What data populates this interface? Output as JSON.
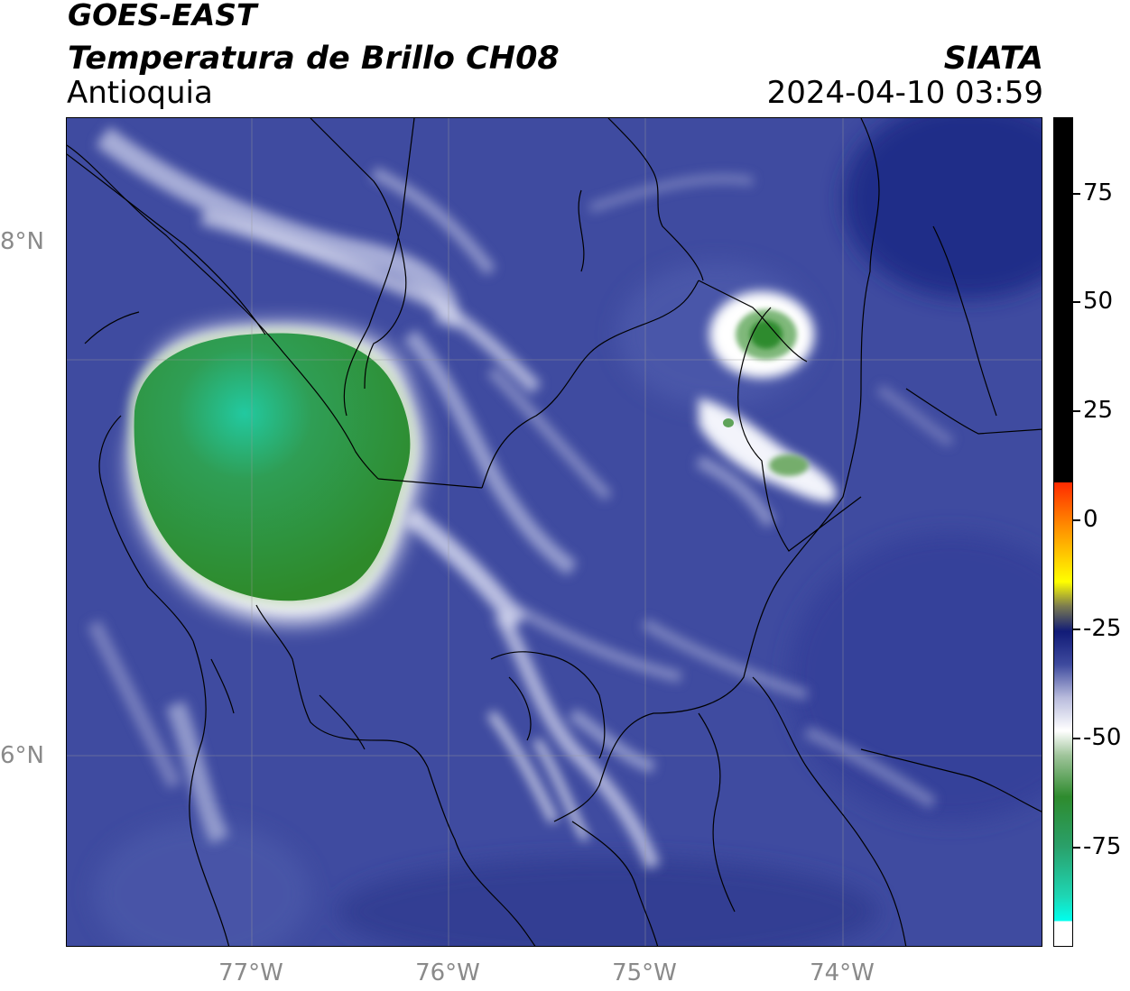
{
  "header": {
    "satellite": "GOES-EAST",
    "product": "Temperatura de Brillo CH08",
    "region": "Antioquia",
    "organization": "SIATA",
    "datetime": "2024-04-10 03:59"
  },
  "map": {
    "latitude_labels": [
      "8°N",
      "6°N"
    ],
    "longitude_labels": [
      "77°W",
      "76°W",
      "75°W",
      "74°W"
    ]
  },
  "colorbar": {
    "tick_labels": [
      "75",
      "50",
      "25",
      "0",
      "-25",
      "-50",
      "-75"
    ],
    "colors": {
      "black_band": "#000000",
      "red": "#ff2a00",
      "orange": "#ff9900",
      "yellow": "#ffff00",
      "navy": "#111b77",
      "blue": "#3e4a9e",
      "white": "#ffffff",
      "green": "#2e8b2e",
      "teal": "#1ed6b4",
      "cyan": "#00ffee"
    }
  }
}
